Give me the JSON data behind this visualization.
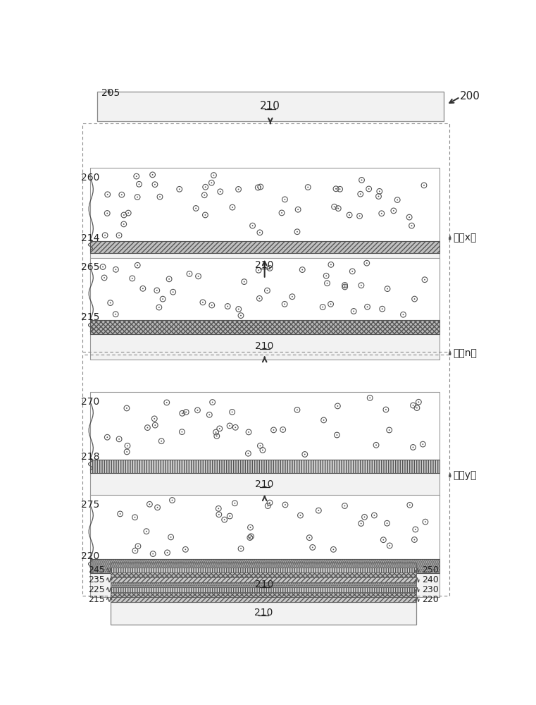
{
  "bg_color": "#ffffff",
  "border_color": "#555555",
  "label_color": "#222222",
  "label_205": "205",
  "label_210": "210",
  "label_200": "200",
  "label_214": "214",
  "label_215": "215",
  "label_218": "218",
  "label_220": "220",
  "label_225": "225",
  "label_230": "230",
  "label_235": "235",
  "label_240": "240",
  "label_245": "245",
  "label_250": "250",
  "label_260": "260",
  "label_265": "265",
  "label_270": "270",
  "label_275": "275",
  "repeat_x": "重夏x次",
  "repeat_n": "重夏n次",
  "repeat_y": "重夏y次"
}
